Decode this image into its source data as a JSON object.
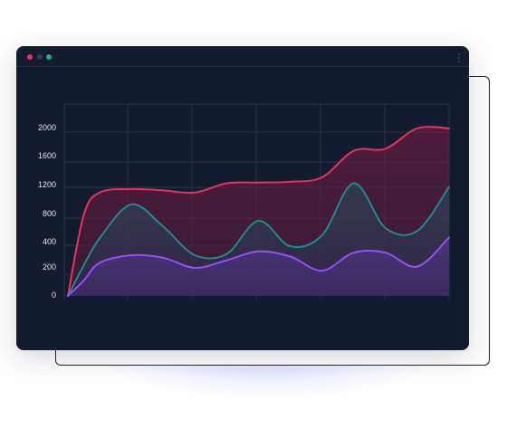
{
  "window": {
    "controls": [
      "close",
      "minimize",
      "maximize"
    ],
    "menu_icon": "kebab-menu-icon"
  },
  "colors": {
    "background": "#151b2e",
    "grid": "#2a3146",
    "series_red": "#e8315f",
    "series_teal": "#1e8b8f",
    "series_purple": "#9a4dff"
  },
  "chart_data": {
    "type": "area",
    "title": "",
    "xlabel": "",
    "ylabel": "",
    "ylim": [
      0,
      2100
    ],
    "grid": true,
    "legend": "none",
    "y_ticks": [
      {
        "value": 0,
        "label": "0"
      },
      {
        "value": 200,
        "label": "200"
      },
      {
        "value": 400,
        "label": "400"
      },
      {
        "value": 800,
        "label": "800"
      },
      {
        "value": 1200,
        "label": "1200"
      },
      {
        "value": 1600,
        "label": "1600"
      },
      {
        "value": 2000,
        "label": "2000"
      }
    ],
    "x": [
      0,
      0.25,
      0.5,
      1,
      1.5,
      2,
      2.5,
      3,
      3.5,
      4,
      4.5,
      5,
      5.5,
      6
    ],
    "series": [
      {
        "color": "#e8315f",
        "values": [
          0,
          780,
          1100,
          1150,
          1130,
          1100,
          1230,
          1240,
          1250,
          1310,
          1670,
          1700,
          1990,
          1990
        ]
      },
      {
        "color": "#1e8b8f",
        "values": [
          0,
          220,
          460,
          930,
          620,
          300,
          310,
          700,
          370,
          500,
          1230,
          600,
          560,
          1180
        ]
      },
      {
        "color": "#9a4dff",
        "values": [
          0,
          110,
          240,
          300,
          280,
          200,
          260,
          330,
          290,
          180,
          320,
          320,
          210,
          470
        ]
      }
    ]
  }
}
